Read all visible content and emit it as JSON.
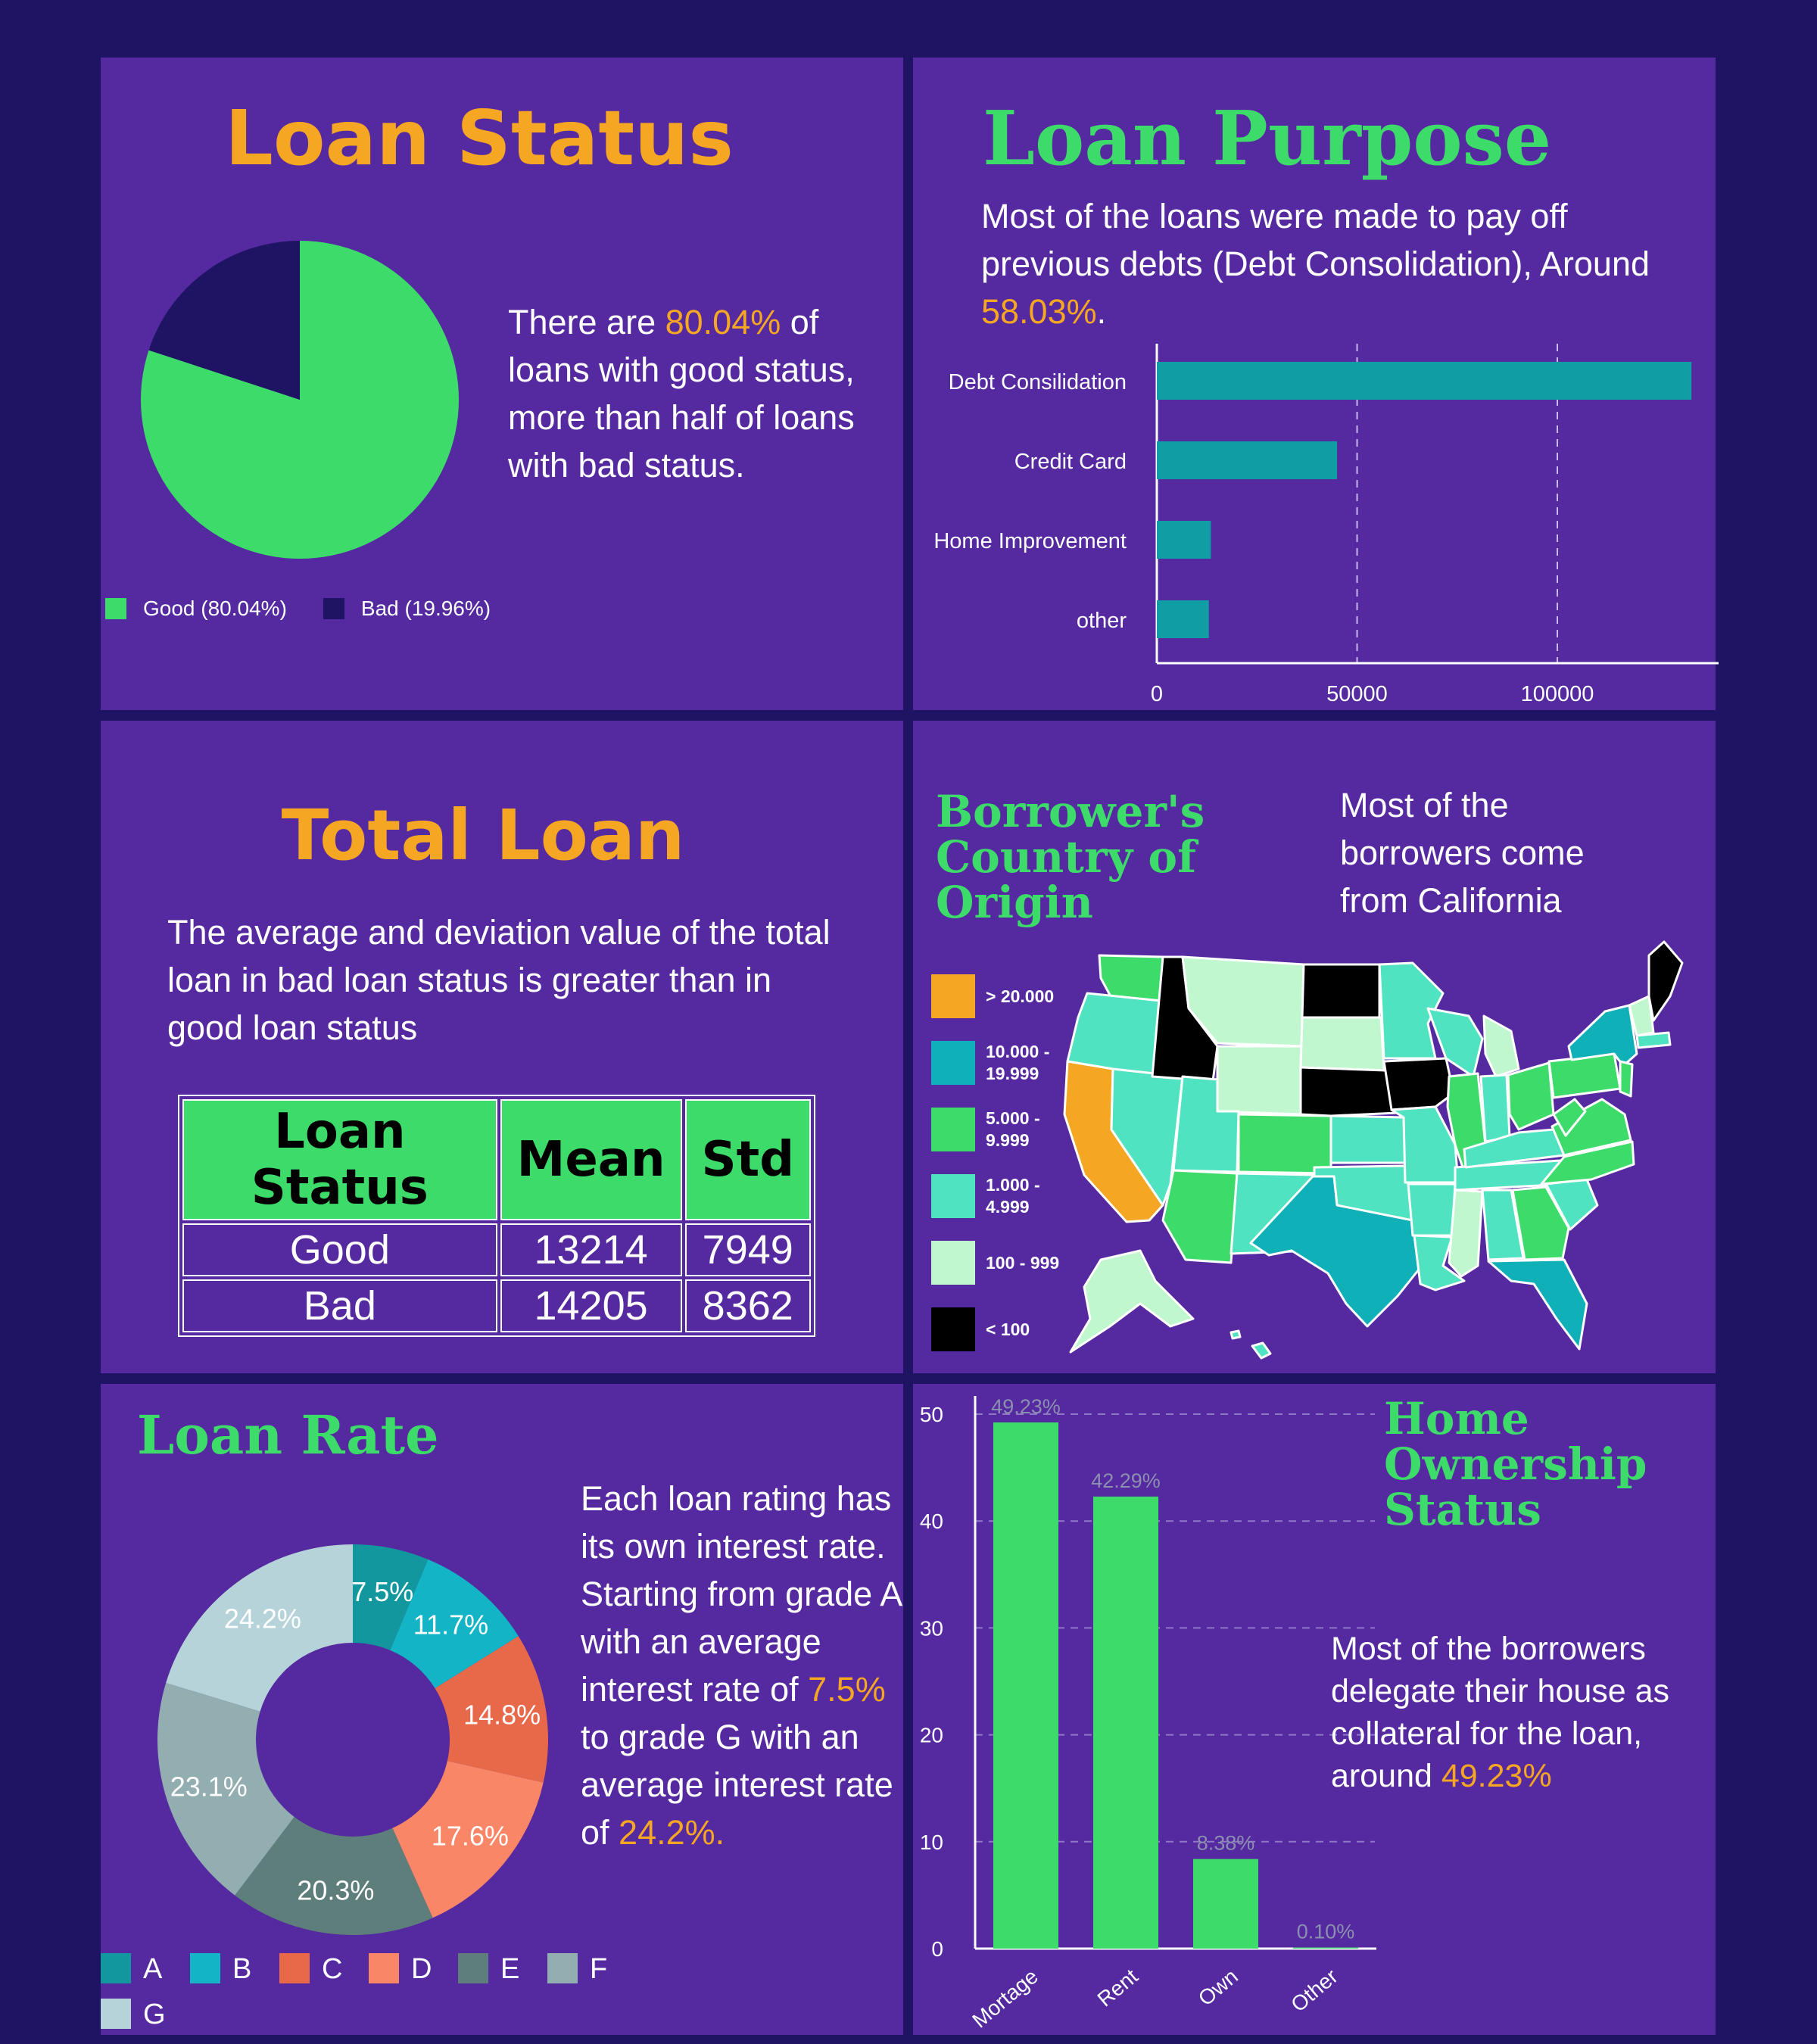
{
  "colors": {
    "background": "#1f1464",
    "panel": "#55299f",
    "green": "#3ddc6a",
    "orange": "#f5a623",
    "teal_bar": "#119da4",
    "dark_navy": "#1f1464"
  },
  "loan_status": {
    "title": "Loan Status",
    "text_before": "There are ",
    "text_highlight": "80.04%",
    "text_after": " of loans with good status, more than half of loans with bad status.",
    "legend": [
      {
        "label": "Good (80.04%)",
        "color": "#3ddc6a"
      },
      {
        "label": "Bad (19.96%)",
        "color": "#1f1464"
      }
    ]
  },
  "loan_purpose": {
    "title": "Loan Purpose",
    "text_before": "Most of the loans were made to pay off previous debts (Debt Consolidation), Around ",
    "text_highlight": "58.03%",
    "text_after": "."
  },
  "total_loan": {
    "title": "Total Loan",
    "text": "The average and deviation value of the total loan in bad loan status is greater than in good loan status",
    "table": {
      "headers": [
        "Loan Status",
        "Mean",
        "Std"
      ],
      "rows": [
        [
          "Good",
          "13214",
          "7949"
        ],
        [
          "Bad",
          "14205",
          "8362"
        ]
      ]
    }
  },
  "origin": {
    "title_lines": [
      "Borrower's",
      "Country of",
      "Origin"
    ],
    "text": "Most of the borrowers come from California",
    "legend": [
      {
        "label": "> 20.000",
        "color": "#f5a623"
      },
      {
        "label": "10.000 - 19.999",
        "color": "#10b0b8"
      },
      {
        "label": "5.000 - 9.999",
        "color": "#3ddc6a"
      },
      {
        "label": "1.000 - 4.999",
        "color": "#4fe3c1"
      },
      {
        "label": "100 - 999",
        "color": "#c0f7cf"
      },
      {
        "label": "< 100",
        "color": "#000000"
      }
    ]
  },
  "loan_rate": {
    "title": "Loan Rate",
    "text_parts": [
      "Each loan rating has its own interest rate. Starting from grade A with an average interest rate of ",
      "7.5%",
      " to grade G with an average interest rate of ",
      "24.2%."
    ]
  },
  "home": {
    "title_lines": [
      "Home",
      "Ownership",
      "Status"
    ],
    "text_before": "Most of the borrowers delegate their house as collateral for the loan, around ",
    "text_highlight": "49.23%"
  },
  "chart_data": [
    {
      "type": "pie",
      "title": "Loan Status",
      "categories": [
        "Good",
        "Bad"
      ],
      "values": [
        80.04,
        19.96
      ],
      "colors": [
        "#3ddc6a",
        "#1f1464"
      ],
      "legend": "bottom"
    },
    {
      "type": "bar",
      "orientation": "horizontal",
      "title": "Loan Purpose",
      "categories": [
        "Debt Consilidation",
        "Credit Card",
        "Home Improvement",
        "other"
      ],
      "values": [
        133500,
        45000,
        13500,
        13000
      ],
      "xlim": [
        0,
        140000
      ],
      "xticks": [
        "0",
        "50000",
        "100000"
      ],
      "grid": "vertical dashed",
      "color": "#119da4"
    },
    {
      "type": "pie",
      "variant": "donut",
      "title": "Loan Rate",
      "categories": [
        "A",
        "B",
        "C",
        "D",
        "E",
        "F",
        "G"
      ],
      "values": [
        7.5,
        11.7,
        14.8,
        17.6,
        20.3,
        23.1,
        24.2
      ],
      "labels": [
        "7.5%",
        "11.7%",
        "14.8%",
        "17.6%",
        "20.3%",
        "23.1%",
        "24.2%"
      ],
      "colors": [
        "#13979e",
        "#12b4c6",
        "#e8684a",
        "#f98666",
        "#5e7e7c",
        "#93aeb0",
        "#b5d3d9"
      ],
      "legend": "bottom"
    },
    {
      "type": "bar",
      "title": "Home Ownership Status",
      "categories": [
        "Mortage",
        "Rent",
        "Own",
        "Other"
      ],
      "values": [
        49.23,
        42.29,
        8.38,
        0.1
      ],
      "labels": [
        "49.23%",
        "42.29%",
        "8.38%",
        "0.10%"
      ],
      "ylim": [
        0,
        50
      ],
      "yticks": [
        "0",
        "10",
        "20",
        "30",
        "40",
        "50"
      ],
      "grid": "horizontal dashed",
      "color": "#3ddc6a"
    }
  ]
}
